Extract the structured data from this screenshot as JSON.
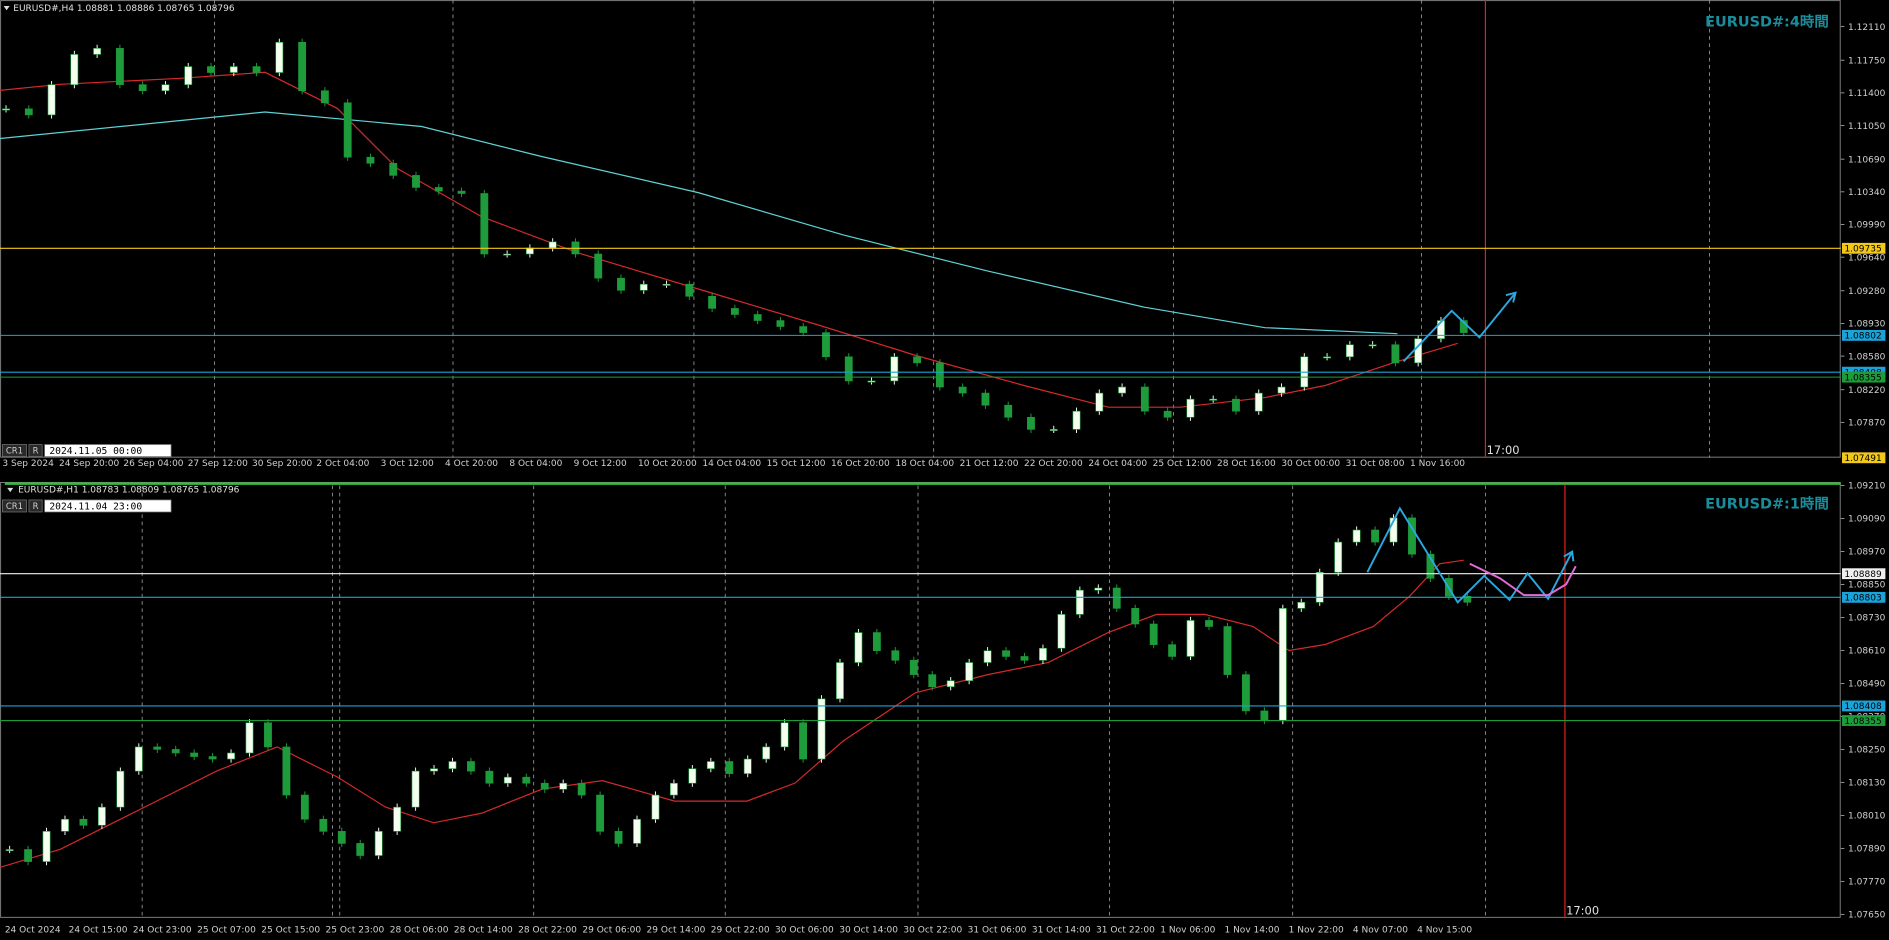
{
  "candle_colors": {
    "up": "#f4fff0",
    "down": "#1e9b3a"
  },
  "panels": [
    {
      "header": "EURUSD#,H4  1.08881 1.08886 1.08765 1.08796",
      "title": "EURUSD#:4時間",
      "badges": [
        "CR1",
        "R"
      ],
      "time": "2024.11.05 00:00",
      "marker_label": "17:00",
      "ylim": [
        1.07491,
        1.12395
      ],
      "yticks": [
        {
          "value": 1.1211,
          "label": "1.12110"
        },
        {
          "value": 1.1175,
          "label": "1.11750"
        },
        {
          "value": 1.114,
          "label": "1.11400"
        },
        {
          "value": 1.1105,
          "label": "1.11050"
        },
        {
          "value": 1.1069,
          "label": "1.10690"
        },
        {
          "value": 1.1034,
          "label": "1.10340"
        },
        {
          "value": 1.0999,
          "label": "1.09990"
        },
        {
          "value": 1.0964,
          "label": "1.09640"
        },
        {
          "value": 1.0928,
          "label": "1.09280"
        },
        {
          "value": 1.0893,
          "label": "1.08930"
        },
        {
          "value": 1.0858,
          "label": "1.08580"
        },
        {
          "value": 1.0822,
          "label": "1.08220"
        },
        {
          "value": 1.0787,
          "label": "1.07870"
        }
      ],
      "price_labels": [
        {
          "value": 1.09735,
          "label": "1.09735",
          "color": "#f2c81a",
          "line": true
        },
        {
          "value": 1.08802,
          "label": "1.08802",
          "color": "#1aa3d9",
          "line": true
        },
        {
          "value": 1.08408,
          "label": "1.08408",
          "color": "#1aa3d9",
          "line": true
        },
        {
          "value": 1.08355,
          "label": "1.08355",
          "color": "#1e9b3a",
          "line": true
        },
        {
          "value": 1.07491,
          "label": "1.07491",
          "color": "#f2c81a",
          "line": false
        }
      ],
      "time_labels": [
        "3 Sep 2024",
        "24 Sep 20:00",
        "26 Sep 04:00",
        "27 Sep 12:00",
        "30 Sep 20:00",
        "2 Oct 04:00",
        "3 Oct 12:00",
        "4 Oct 20:00",
        "8 Oct 04:00",
        "9 Oct 12:00",
        "10 Oct 20:00",
        "14 Oct 04:00",
        "15 Oct 12:00",
        "16 Oct 20:00",
        "18 Oct 04:00",
        "21 Oct 12:00",
        "22 Oct 20:00",
        "24 Oct 04:00",
        "25 Oct 12:00",
        "28 Oct 16:00",
        "30 Oct 00:00",
        "31 Oct 08:00",
        "1 Nov 16:00"
      ],
      "closes": [
        1.11229,
        1.11164,
        1.11488,
        1.11812,
        1.11877,
        1.11488,
        1.11423,
        1.11488,
        1.11682,
        1.11618,
        1.11682,
        1.11618,
        1.11942,
        1.11423,
        1.11294,
        1.10711,
        1.10646,
        1.10516,
        1.10387,
        1.10348,
        1.10322,
        1.09674,
        1.09674,
        1.09739,
        1.09804,
        1.09674,
        1.09415,
        1.09285,
        1.0935,
        1.0935,
        1.09221,
        1.09091,
        1.09026,
        1.08961,
        1.08897,
        1.08832,
        1.08573,
        1.08314,
        1.08314,
        1.08573,
        1.08508,
        1.08249,
        1.08184,
        1.08054,
        1.07925,
        1.07795,
        1.07795,
        1.0799,
        1.08184,
        1.08249,
        1.0799,
        1.07925,
        1.08119,
        1.08119,
        1.0799,
        1.08184,
        1.08249,
        1.08573,
        1.08573,
        1.08702,
        1.08702,
        1.08508,
        1.08767,
        1.08961,
        1.08832
      ]
    },
    {
      "header": "EURUSD#,H1  1.08783 1.08809 1.08765 1.08796",
      "title": "EURUSD#:1時間",
      "badges": [
        "CR1",
        "R"
      ],
      "time": "2024.11.04 23:00",
      "marker_label": "17:00",
      "ylim": [
        1.07637,
        1.09223
      ],
      "yticks": [
        {
          "value": 1.0921,
          "label": "1.09210"
        },
        {
          "value": 1.0909,
          "label": "1.09090"
        },
        {
          "value": 1.0897,
          "label": "1.08970"
        },
        {
          "value": 1.0885,
          "label": "1.08850"
        },
        {
          "value": 1.0873,
          "label": "1.08730"
        },
        {
          "value": 1.0861,
          "label": "1.08610"
        },
        {
          "value": 1.0849,
          "label": "1.08490"
        },
        {
          "value": 1.0837,
          "label": "1.08370"
        },
        {
          "value": 1.0825,
          "label": "1.08250"
        },
        {
          "value": 1.0813,
          "label": "1.08130"
        },
        {
          "value": 1.0801,
          "label": "1.08010"
        },
        {
          "value": 1.0789,
          "label": "1.07890"
        },
        {
          "value": 1.0777,
          "label": "1.07770"
        },
        {
          "value": 1.0765,
          "label": "1.07650"
        }
      ],
      "price_labels": [
        {
          "value": 1.08889,
          "label": "1.08889",
          "color": "#f0f0f0",
          "line": true
        },
        {
          "value": 1.08803,
          "label": "1.08803",
          "color": "#1aa3d9",
          "line": true
        },
        {
          "value": 1.08408,
          "label": "1.08408",
          "color": "#1aa3d9",
          "line": true
        },
        {
          "value": 1.08355,
          "label": "1.08355",
          "color": "#1e9b3a",
          "line": true
        }
      ],
      "time_labels": [
        "24 Oct 2024",
        "24 Oct 15:00",
        "24 Oct 23:00",
        "25 Oct 07:00",
        "25 Oct 15:00",
        "25 Oct 23:00",
        "28 Oct 06:00",
        "28 Oct 14:00",
        "28 Oct 22:00",
        "29 Oct 06:00",
        "29 Oct 14:00",
        "29 Oct 22:00",
        "30 Oct 06:00",
        "30 Oct 14:00",
        "30 Oct 22:00",
        "31 Oct 06:00",
        "31 Oct 14:00",
        "31 Oct 22:00",
        "1 Nov 06:00",
        "1 Nov 14:00",
        "1 Nov 22:00",
        "4 Nov 07:00",
        "4 Nov 15:00"
      ],
      "closes": [
        1.07886,
        1.07842,
        1.07952,
        1.07996,
        1.07974,
        1.0804,
        1.08171,
        1.08259,
        1.0825,
        1.08237,
        1.08224,
        1.08215,
        1.08237,
        1.08347,
        1.08259,
        1.08084,
        1.07996,
        1.07952,
        1.07908,
        1.07864,
        1.07952,
        1.0804,
        1.08171,
        1.0818,
        1.08206,
        1.08171,
        1.08127,
        1.08149,
        1.08127,
        1.08105,
        1.08127,
        1.08084,
        1.07952,
        1.07908,
        1.07996,
        1.08084,
        1.08127,
        1.0818,
        1.08206,
        1.08162,
        1.08215,
        1.08259,
        1.08347,
        1.08215,
        1.08434,
        1.08566,
        1.08675,
        1.08609,
        1.08574,
        1.08522,
        1.08478,
        1.085,
        1.08566,
        1.08609,
        1.08588,
        1.08574,
        1.08618,
        1.08741,
        1.08829,
        1.08837,
        1.08763,
        1.08706,
        1.08631,
        1.08588,
        1.08719,
        1.08697,
        1.08522,
        1.0839,
        1.08355,
        1.08763,
        1.08785,
        1.08894,
        1.09004,
        1.09048,
        1.09004,
        1.09092,
        1.0896,
        1.08872,
        1.08807,
        1.08785
      ]
    }
  ]
}
